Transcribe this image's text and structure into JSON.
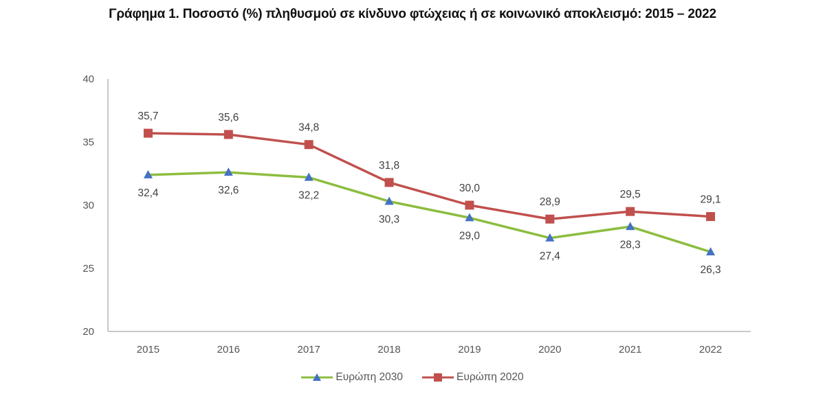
{
  "chart_data": {
    "type": "line",
    "title": "Γράφημα 1. Ποσοστό (%) πληθυσμού σε κίνδυνο φτώχειας ή σε κοινωνικό αποκλεισμό: 2015 – 2022",
    "xlabel": "",
    "ylabel": "",
    "x": [
      "2015",
      "2016",
      "2017",
      "2018",
      "2019",
      "2020",
      "2021",
      "2022"
    ],
    "ylim": [
      20,
      40
    ],
    "yticks": [
      20,
      25,
      30,
      35,
      40
    ],
    "grid": false,
    "legend_position": "bottom",
    "series": [
      {
        "name": "Ευρώπη 2030",
        "values": [
          32.4,
          32.6,
          32.2,
          30.3,
          29.0,
          27.4,
          28.3,
          26.3
        ],
        "labels": [
          "32,4",
          "32,6",
          "32,2",
          "30,3",
          "29,0",
          "27,4",
          "28,3",
          "26,3"
        ],
        "line_color": "#8cbd3f",
        "marker": "triangle",
        "marker_color": "#4472c4",
        "label_position": "below"
      },
      {
        "name": "Ευρώπη 2020",
        "values": [
          35.7,
          35.6,
          34.8,
          31.8,
          30.0,
          28.9,
          29.5,
          29.1
        ],
        "labels": [
          "35,7",
          "35,6",
          "34,8",
          "31,8",
          "30,0",
          "28,9",
          "29,5",
          "29,1"
        ],
        "line_color": "#c0504d",
        "marker": "square",
        "marker_color": "#c0504d",
        "label_position": "above"
      }
    ]
  }
}
